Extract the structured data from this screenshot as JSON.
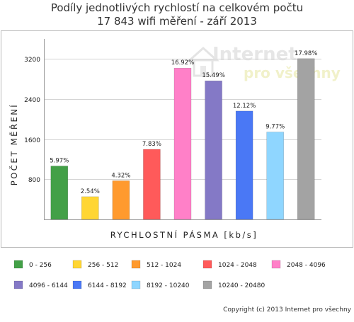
{
  "chart_data": {
    "type": "bar",
    "title": "Podíly jednotlivých rychlostí na celkovém počtu",
    "subtitle": "17 843 wifi měření - září 2013",
    "xlabel": "RYCHLOSTNÍ PÁSMA [kb/s]",
    "ylabel": "POČET MĚŘENÍ",
    "ylim": [
      0,
      3600
    ],
    "yticks": [
      800,
      1600,
      2400,
      3200
    ],
    "grid": true,
    "legend_position": "bottom",
    "categories": [
      "0 - 256",
      "256 - 512",
      "512 - 1024",
      "1024 - 2048",
      "2048 - 4096",
      "4096 - 6144",
      "6144 - 8192",
      "8192 - 10240",
      "10240 - 20480"
    ],
    "values": [
      1065,
      453,
      771,
      1397,
      3019,
      2764,
      2162,
      1743,
      3208
    ],
    "data_labels": [
      "5.97%",
      "2.54%",
      "4.32%",
      "7.83%",
      "16.92%",
      "15.49%",
      "12.12%",
      "9.77%",
      "17.98%"
    ],
    "colors": [
      "#43a047",
      "#ffd633",
      "#ff9a2e",
      "#ff5a5a",
      "#ff80c8",
      "#8479c6",
      "#4a78f5",
      "#8fd6ff",
      "#a3a3a3"
    ]
  },
  "watermark": {
    "line1": "Internet",
    "line2": "pro všechny"
  },
  "copyright": "Copyright (c) 2013 Internet pro všechny"
}
